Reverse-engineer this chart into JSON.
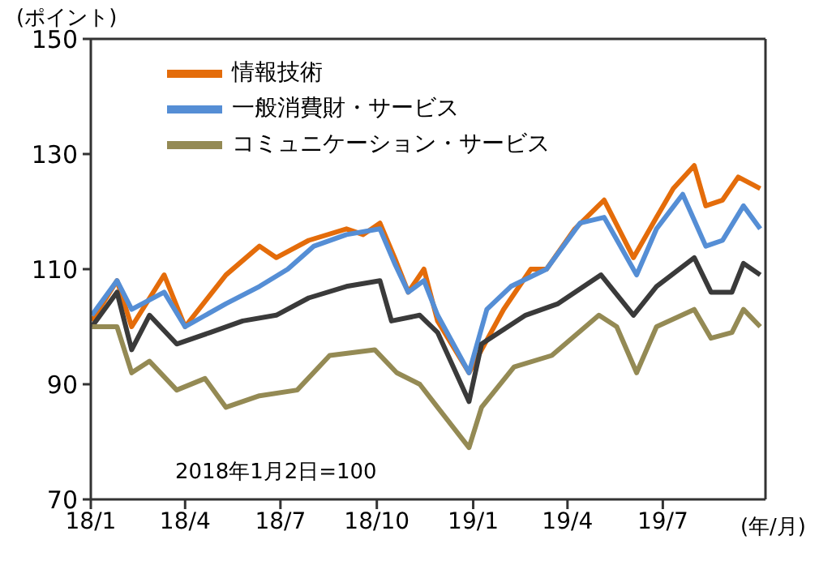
{
  "chart_data": {
    "type": "line",
    "ylabel": "(ポイント)",
    "xlabel": "(年/月)",
    "annotations": [
      "2018年1月2日=100"
    ],
    "xlim": [
      "2018-01-01",
      "2019-10-07"
    ],
    "xticks": [
      {
        "value": "2018-01-01",
        "label": "18/1"
      },
      {
        "value": "2018-04-01",
        "label": "18/4"
      },
      {
        "value": "2018-07-01",
        "label": "18/7"
      },
      {
        "value": "2018-10-01",
        "label": "18/10"
      },
      {
        "value": "2019-01-01",
        "label": "19/1"
      },
      {
        "value": "2019-04-01",
        "label": "19/4"
      },
      {
        "value": "2019-07-01",
        "label": "19/7"
      }
    ],
    "ylim": [
      70,
      150
    ],
    "yticks": [
      70,
      90,
      110,
      130,
      150
    ],
    "grid": false,
    "legend": "top left",
    "marker": "none",
    "line_style": "solid",
    "series": [
      {
        "name": "情報技術",
        "color": "#e46c0a",
        "x": [
          "2018-01-02",
          "2018-01-26",
          "2018-02-09",
          "2018-03-12",
          "2018-04-01",
          "2018-05-10",
          "2018-06-11",
          "2018-06-27",
          "2018-07-28",
          "2018-09-02",
          "2018-09-18",
          "2018-10-04",
          "2018-10-18",
          "2018-10-31",
          "2018-11-15",
          "2018-11-28",
          "2018-12-28",
          "2019-01-09",
          "2019-01-30",
          "2019-02-25",
          "2019-03-12",
          "2019-04-08",
          "2019-05-06",
          "2019-06-03",
          "2019-06-25",
          "2019-07-11",
          "2019-07-31",
          "2019-08-11",
          "2019-08-27",
          "2019-09-11",
          "2019-10-02"
        ],
        "values": [
          101,
          108,
          100,
          109,
          100,
          109,
          114,
          112,
          115,
          117,
          116,
          118,
          112,
          106,
          110,
          101,
          92,
          96,
          103,
          110,
          110,
          117,
          122,
          112,
          119,
          124,
          128,
          121,
          122,
          126,
          124
        ]
      },
      {
        "name": "一般消費財・サービス",
        "color": "#558ed5",
        "x": [
          "2018-01-02",
          "2018-01-26",
          "2018-02-09",
          "2018-03-12",
          "2018-04-01",
          "2018-05-10",
          "2018-06-11",
          "2018-07-08",
          "2018-08-02",
          "2018-09-02",
          "2018-10-04",
          "2018-10-18",
          "2018-10-31",
          "2018-11-15",
          "2018-11-28",
          "2018-12-28",
          "2019-01-14",
          "2019-02-06",
          "2019-03-12",
          "2019-04-13",
          "2019-05-06",
          "2019-06-06",
          "2019-06-25",
          "2019-07-20",
          "2019-08-11",
          "2019-08-27",
          "2019-09-16",
          "2019-10-02"
        ],
        "values": [
          102,
          108,
          103,
          106,
          100,
          104,
          107,
          110,
          114,
          116,
          117,
          111,
          106,
          108,
          102,
          92,
          103,
          107,
          110,
          118,
          119,
          109,
          117,
          123,
          114,
          115,
          121,
          117
        ]
      },
      {
        "color": "#3a3a3a",
        "x": [
          "2018-01-02",
          "2018-01-26",
          "2018-02-09",
          "2018-02-26",
          "2018-03-24",
          "2018-04-25",
          "2018-05-26",
          "2018-06-27",
          "2018-07-28",
          "2018-09-02",
          "2018-10-04",
          "2018-10-15",
          "2018-11-11",
          "2018-11-28",
          "2018-12-28",
          "2019-01-09",
          "2019-02-20",
          "2019-03-23",
          "2019-05-03",
          "2019-06-03",
          "2019-06-25",
          "2019-07-31",
          "2019-08-16",
          "2019-09-05",
          "2019-09-16",
          "2019-10-02"
        ],
        "values": [
          100,
          106,
          96,
          102,
          97,
          99,
          101,
          102,
          105,
          107,
          108,
          101,
          102,
          99,
          87,
          97,
          102,
          104,
          109,
          102,
          107,
          112,
          106,
          106,
          111,
          109
        ]
      },
      {
        "name": "コミュニケーション・サービス",
        "color": "#948a54",
        "x": [
          "2018-01-02",
          "2018-01-26",
          "2018-02-09",
          "2018-02-26",
          "2018-03-24",
          "2018-04-20",
          "2018-05-10",
          "2018-06-11",
          "2018-07-17",
          "2018-08-17",
          "2018-09-29",
          "2018-10-20",
          "2018-11-11",
          "2018-11-28",
          "2018-12-28",
          "2019-01-09",
          "2019-02-09",
          "2019-03-17",
          "2019-05-01",
          "2019-05-18",
          "2019-06-06",
          "2019-06-25",
          "2019-07-31",
          "2019-08-16",
          "2019-09-05",
          "2019-09-16",
          "2019-10-02"
        ],
        "values": [
          100,
          100,
          92,
          94,
          89,
          91,
          86,
          88,
          89,
          95,
          96,
          92,
          90,
          86,
          79,
          86,
          93,
          95,
          102,
          100,
          92,
          100,
          103,
          98,
          99,
          103,
          100
        ]
      }
    ]
  }
}
